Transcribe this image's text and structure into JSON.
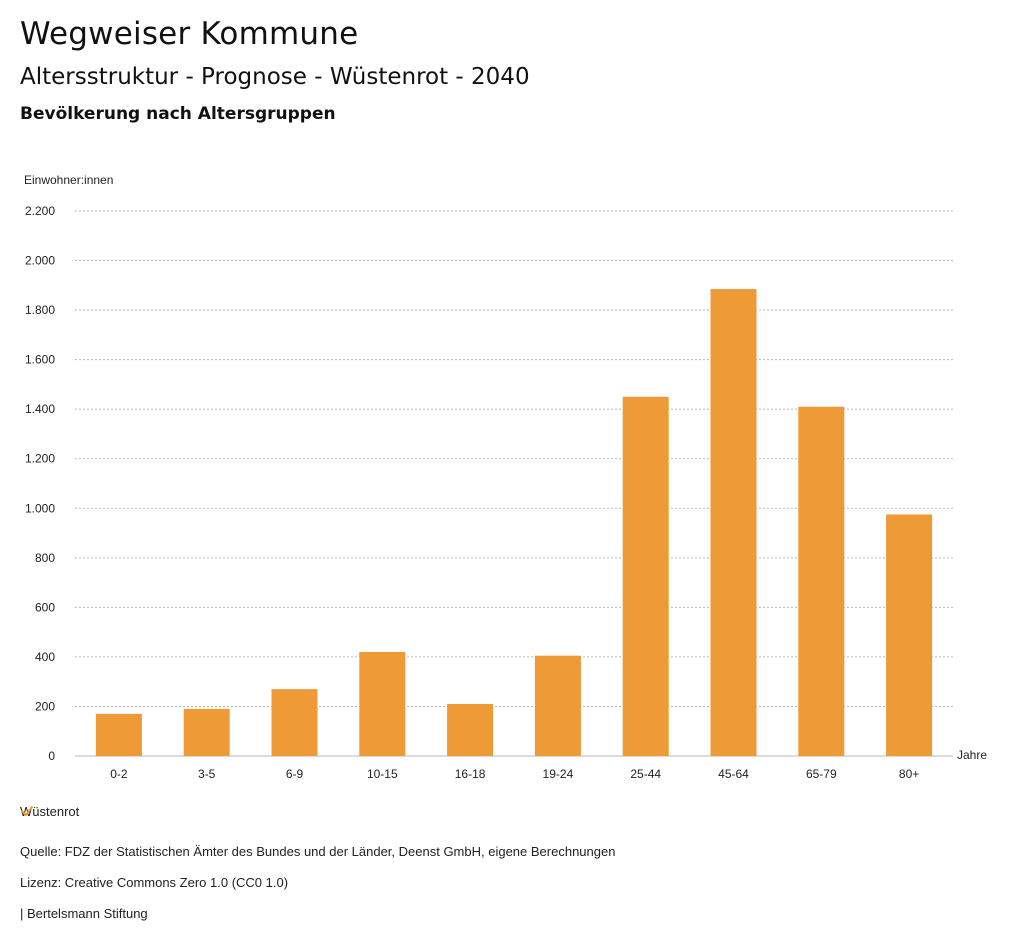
{
  "header": {
    "brand": "Wegweiser Kommune",
    "title": "Altersstruktur - Prognose - Wüstenrot - 2040",
    "subtitle": "Bevölkerung nach Altersgruppen"
  },
  "colors": {
    "bar": "#EE9B37",
    "grid": "#b9b9b9",
    "check": "#EE9B37"
  },
  "chart_data": {
    "type": "bar",
    "ylabel": "Einwohner:innen",
    "xlabel": "Jahre",
    "ylim": [
      0,
      2200
    ],
    "yticks": [
      0,
      200,
      400,
      600,
      800,
      1000,
      1200,
      1400,
      1600,
      1800,
      2000,
      2200
    ],
    "ytick_labels": [
      "0",
      "200",
      "400",
      "600",
      "800",
      "1.000",
      "1.200",
      "1.400",
      "1.600",
      "1.800",
      "2.000",
      "2.200"
    ],
    "categories": [
      "0-2",
      "3-5",
      "6-9",
      "10-15",
      "16-18",
      "19-24",
      "25-44",
      "45-64",
      "65-79",
      "80+"
    ],
    "series": [
      {
        "name": "Wüstenrot",
        "values": [
          170,
          190,
          270,
          420,
          210,
          405,
          1450,
          1885,
          1410,
          975
        ]
      }
    ]
  },
  "legend": {
    "label": "Wüstenrot"
  },
  "footer": {
    "source": "Quelle: FDZ der Statistischen Ämter des Bundes und der Länder, Deenst GmbH, eigene Berechnungen",
    "license": "Lizenz: Creative Commons Zero 1.0 (CC0 1.0)",
    "publisher": "| Bertelsmann Stiftung"
  }
}
